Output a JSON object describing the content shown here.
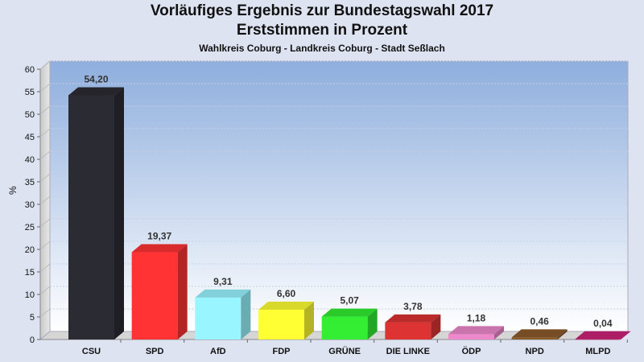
{
  "chart_data": {
    "type": "bar",
    "title": "Vorläufiges Ergebnis zur Bundestagswahl 2017",
    "title2": "Erststimmen in Prozent",
    "subtitle": "Wahlkreis Coburg - Landkreis Coburg - Stadt Seßlach",
    "ylabel": "%",
    "xlabel": "",
    "ylim": [
      0,
      60
    ],
    "yticks": [
      0,
      5,
      10,
      15,
      20,
      25,
      30,
      35,
      40,
      45,
      50,
      55,
      60
    ],
    "grid": true,
    "categories": [
      "CSU",
      "SPD",
      "AfD",
      "FDP",
      "GRÜNE",
      "DIE LINKE",
      "ÖDP",
      "NPD",
      "MLPD"
    ],
    "values": [
      54.2,
      19.37,
      9.31,
      6.6,
      5.07,
      3.78,
      1.18,
      0.46,
      0.04
    ],
    "value_labels": [
      "54,20",
      "19,37",
      "9,31",
      "6,60",
      "5,07",
      "3,78",
      "1,18",
      "0,46",
      "0,04"
    ],
    "colors": [
      "#2b2b33",
      "#ff3333",
      "#99f5ff",
      "#ffff33",
      "#33ee33",
      "#dd3333",
      "#ee88cc",
      "#8b5a2b",
      "#cc2277"
    ]
  }
}
